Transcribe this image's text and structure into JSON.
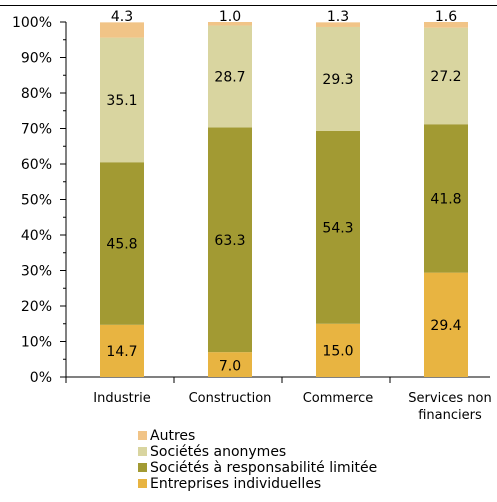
{
  "chart_data": {
    "type": "bar",
    "stacked": true,
    "percent": true,
    "categories": [
      [
        "Industrie"
      ],
      [
        "Construction"
      ],
      [
        "Commerce"
      ],
      [
        "Services non",
        "financiers"
      ]
    ],
    "y_ticks": [
      "0%",
      "10%",
      "20%",
      "30%",
      "40%",
      "50%",
      "60%",
      "70%",
      "80%",
      "90%",
      "100%"
    ],
    "ylim": [
      0,
      100
    ],
    "grid": false,
    "legend_position": "bottom",
    "series": [
      {
        "name": "Entreprises individuelles",
        "color": "#e8b441",
        "values": [
          14.7,
          7.0,
          15.0,
          29.4
        ],
        "labels": [
          "14.7",
          "7.0",
          "15.0",
          "29.4"
        ]
      },
      {
        "name": "Sociétés à responsabilité limitée",
        "color": "#a29a33",
        "values": [
          45.8,
          63.3,
          54.3,
          41.8
        ],
        "labels": [
          "45.8",
          "63.3",
          "54.3",
          "41.8"
        ]
      },
      {
        "name": "Sociétés anonymes",
        "color": "#d9d5a0",
        "values": [
          35.1,
          28.7,
          29.3,
          27.2
        ],
        "labels": [
          "35.1",
          "28.7",
          "29.3",
          "27.2"
        ]
      },
      {
        "name": "Autres",
        "color": "#f1c487",
        "values": [
          4.3,
          1.0,
          1.3,
          1.6
        ],
        "labels": [
          "4.3",
          "1.0",
          "1.3",
          "1.6"
        ]
      }
    ]
  }
}
